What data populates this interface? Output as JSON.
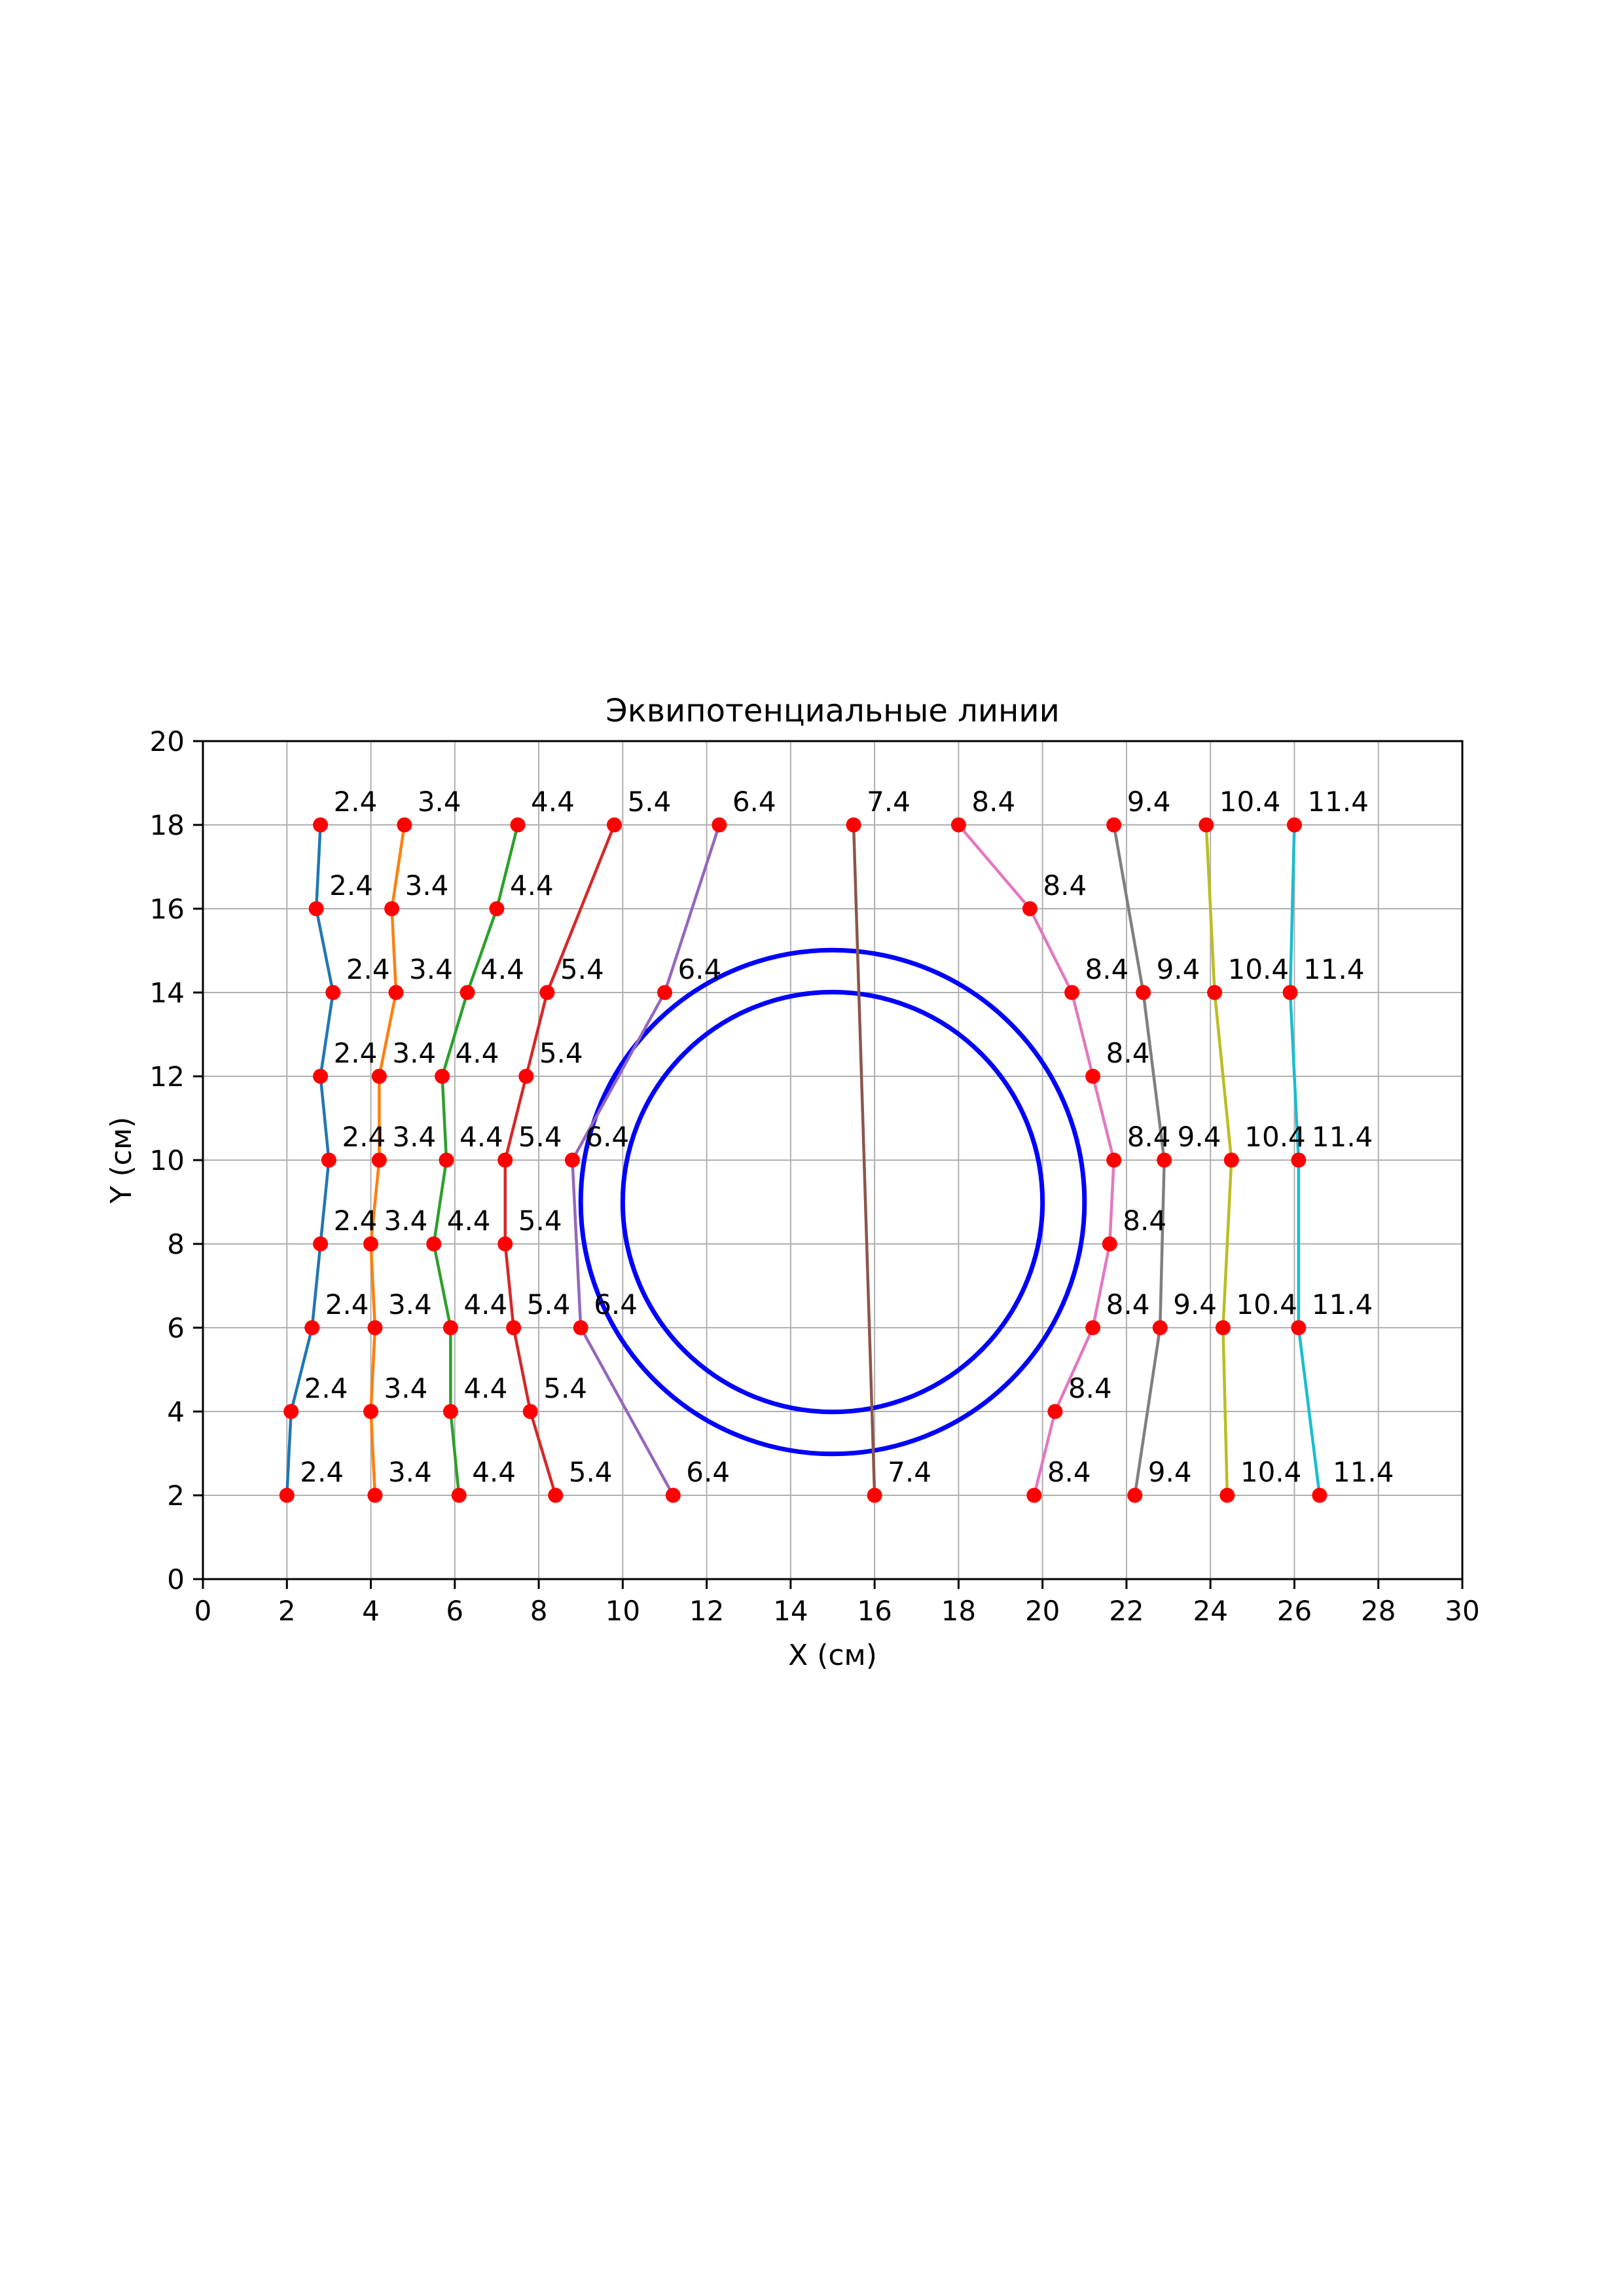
{
  "figure": {
    "background": "#ffffff"
  },
  "chart_data": {
    "type": "line",
    "title": "Эквипотенциальные линии",
    "xlabel": "X (см)",
    "ylabel": "Y (см)",
    "xlim": [
      0,
      30
    ],
    "ylim": [
      0,
      20
    ],
    "xticks": [
      0,
      2,
      4,
      6,
      8,
      10,
      12,
      14,
      16,
      18,
      20,
      22,
      24,
      26,
      28,
      30
    ],
    "yticks": [
      0,
      2,
      4,
      6,
      8,
      10,
      12,
      14,
      16,
      18,
      20
    ],
    "grid": true,
    "grid_color": "#b0b0b0",
    "spine_color": "#000000",
    "marker_color": "#ff0000",
    "annotation_color": "#000000",
    "legend": "none",
    "series": [
      {
        "name": "2.4",
        "color": "#1f77b4",
        "points": [
          [
            2.8,
            18
          ],
          [
            2.7,
            16
          ],
          [
            3.1,
            14
          ],
          [
            2.8,
            12
          ],
          [
            3.0,
            10
          ],
          [
            2.8,
            8
          ],
          [
            2.6,
            6
          ],
          [
            2.1,
            4
          ],
          [
            2.0,
            2
          ]
        ]
      },
      {
        "name": "3.4",
        "color": "#ff7f0e",
        "points": [
          [
            4.8,
            18
          ],
          [
            4.5,
            16
          ],
          [
            4.6,
            14
          ],
          [
            4.2,
            12
          ],
          [
            4.2,
            10
          ],
          [
            4.0,
            8
          ],
          [
            4.1,
            6
          ],
          [
            4.0,
            4
          ],
          [
            4.1,
            2
          ]
        ]
      },
      {
        "name": "4.4",
        "color": "#2ca02c",
        "points": [
          [
            7.5,
            18
          ],
          [
            7.0,
            16
          ],
          [
            6.3,
            14
          ],
          [
            5.7,
            12
          ],
          [
            5.8,
            10
          ],
          [
            5.5,
            8
          ],
          [
            5.9,
            6
          ],
          [
            5.9,
            4
          ],
          [
            6.1,
            2
          ]
        ]
      },
      {
        "name": "5.4",
        "color": "#d62728",
        "points": [
          [
            9.8,
            18
          ],
          [
            8.2,
            14
          ],
          [
            7.7,
            12
          ],
          [
            7.2,
            10
          ],
          [
            7.2,
            8
          ],
          [
            7.4,
            6
          ],
          [
            7.8,
            4
          ],
          [
            8.4,
            2
          ]
        ]
      },
      {
        "name": "6.4",
        "color": "#9467bd",
        "points": [
          [
            12.3,
            18
          ],
          [
            11.0,
            14
          ],
          [
            8.8,
            10
          ],
          [
            9.0,
            6
          ],
          [
            11.2,
            2
          ]
        ]
      },
      {
        "name": "7.4",
        "color": "#8c564b",
        "points": [
          [
            15.5,
            18
          ],
          [
            16.0,
            2
          ]
        ]
      },
      {
        "name": "8.4",
        "color": "#e377c2",
        "points": [
          [
            18.0,
            18
          ],
          [
            19.7,
            16
          ],
          [
            20.7,
            14
          ],
          [
            21.2,
            12
          ],
          [
            21.7,
            10
          ],
          [
            21.6,
            8
          ],
          [
            21.2,
            6
          ],
          [
            20.3,
            4
          ],
          [
            19.8,
            2
          ]
        ]
      },
      {
        "name": "9.4",
        "color": "#7f7f7f",
        "points": [
          [
            21.7,
            18
          ],
          [
            22.4,
            14
          ],
          [
            22.9,
            10
          ],
          [
            22.8,
            6
          ],
          [
            22.2,
            2
          ]
        ]
      },
      {
        "name": "10.4",
        "color": "#bcbd22",
        "points": [
          [
            23.9,
            18
          ],
          [
            24.1,
            14
          ],
          [
            24.5,
            10
          ],
          [
            24.3,
            6
          ],
          [
            24.4,
            2
          ]
        ]
      },
      {
        "name": "11.4",
        "color": "#17becf",
        "points": [
          [
            26.0,
            18
          ],
          [
            25.9,
            14
          ],
          [
            26.1,
            10
          ],
          [
            26.1,
            6
          ],
          [
            26.6,
            2
          ]
        ]
      }
    ],
    "circles": [
      {
        "cx": 15,
        "cy": 9,
        "r": 6,
        "color": "#0000ff"
      },
      {
        "cx": 15,
        "cy": 9,
        "r": 5,
        "color": "#0000ff"
      }
    ]
  }
}
